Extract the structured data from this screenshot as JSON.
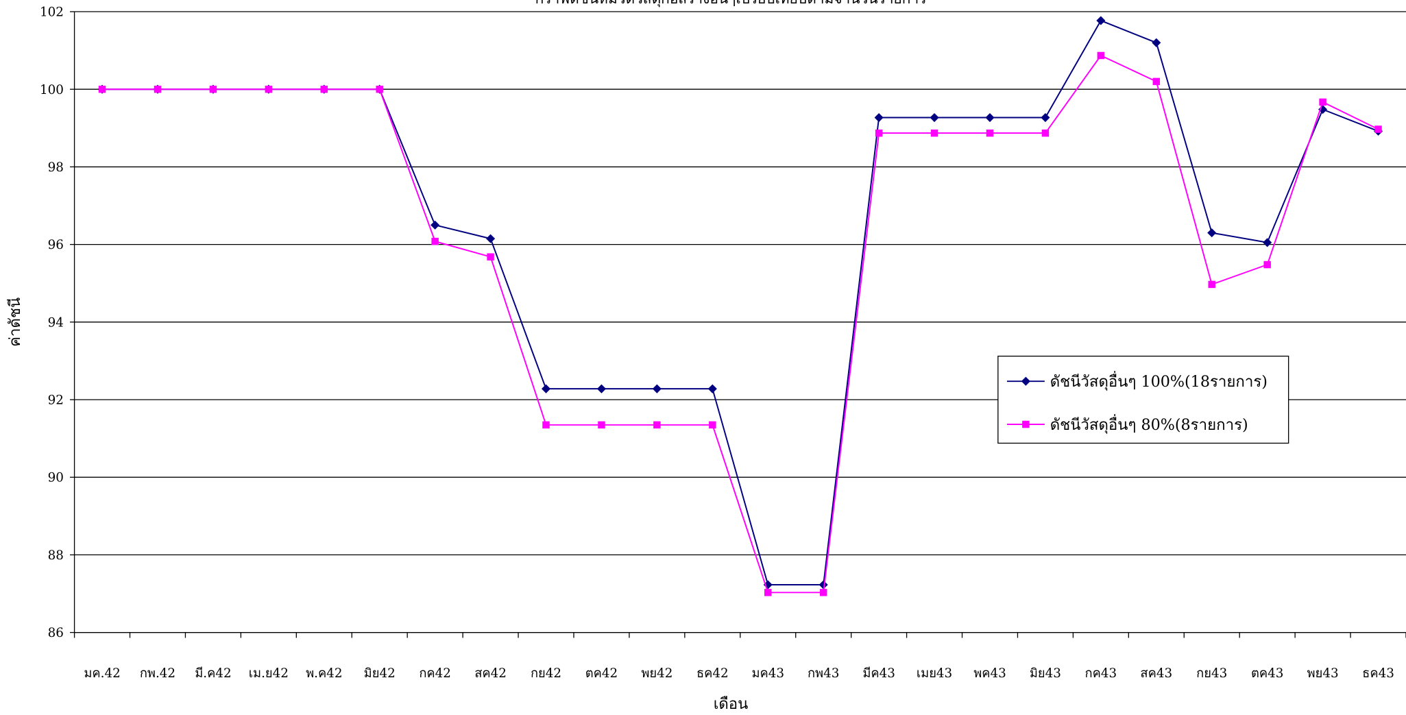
{
  "chart_data": {
    "type": "line",
    "title": "กราฟดัชนีหมวดวัสดุก่อสร้างอื่นๆเปรียบเทียบตามจำนวนรายการ",
    "x_label": "เดือน",
    "y_label": "ค่าดัชนี",
    "categories": [
      "มค.42",
      "กพ.42",
      "มี.ค42",
      "เม.ย42",
      "พ.ค42",
      "มิย42",
      "กค42",
      "สค42",
      "กย42",
      "ตค42",
      "พย42",
      "ธค42",
      "มค43",
      "กพ43",
      "มีค43",
      "เมย43",
      "พค43",
      "มิย43",
      "กค43",
      "สค43",
      "กย43",
      "ตค43",
      "พย43",
      "ธค43"
    ],
    "series": [
      {
        "name": "ดัชนีวัสดุอื่นๆ 100%(18รายการ)",
        "color": "#000080",
        "marker": "diamond",
        "values": [
          100,
          100,
          100,
          100,
          100,
          100,
          96.5,
          96.15,
          92.28,
          92.28,
          92.28,
          92.28,
          87.23,
          87.23,
          99.27,
          99.27,
          99.27,
          99.27,
          101.77,
          101.2,
          96.3,
          96.05,
          99.48,
          98.92
        ]
      },
      {
        "name": "ดัชนีวัสดุอื่นๆ 80%(8รายการ)",
        "color": "#ff00ff",
        "marker": "square",
        "values": [
          100,
          100,
          100,
          100,
          100,
          100,
          96.08,
          95.68,
          91.35,
          91.35,
          91.35,
          91.35,
          87.03,
          87.03,
          98.87,
          98.87,
          98.87,
          98.87,
          100.87,
          100.2,
          94.97,
          95.48,
          99.67,
          98.97
        ]
      }
    ],
    "ylim": [
      86,
      102
    ],
    "yticks": [
      86,
      88,
      90,
      92,
      94,
      96,
      98,
      100,
      102
    ],
    "grid": true,
    "legend": "right"
  }
}
